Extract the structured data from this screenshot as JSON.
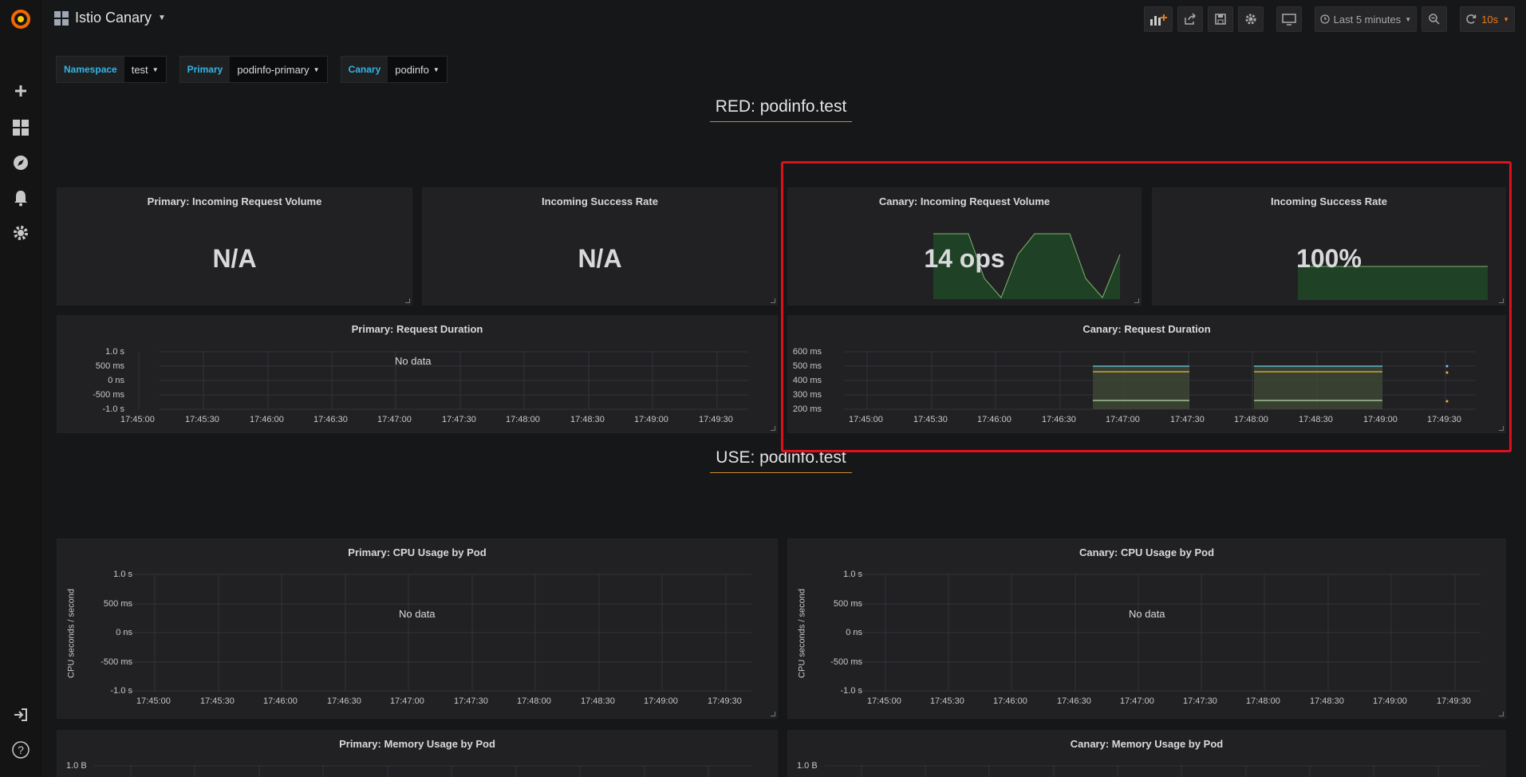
{
  "dashboard": {
    "title": "Istio Canary"
  },
  "toolbar": {
    "time_range": "Last 5 minutes",
    "refresh_interval": "10s",
    "accent_color": "#eb7b18"
  },
  "variables": [
    {
      "label": "Namespace",
      "value": "test"
    },
    {
      "label": "Primary",
      "value": "podinfo-primary"
    },
    {
      "label": "Canary",
      "value": "podinfo"
    }
  ],
  "rows": {
    "red": "RED: podinfo.test",
    "use": "USE: podinfo.test"
  },
  "panels": {
    "primary_volume": {
      "title": "Primary: Incoming Request Volume",
      "value": "N/A"
    },
    "primary_success": {
      "title": "Incoming Success Rate",
      "value": "N/A"
    },
    "canary_volume": {
      "title": "Canary: Incoming Request Volume",
      "value": "14 ops"
    },
    "canary_success": {
      "title": "Incoming Success Rate",
      "value": "100%"
    },
    "primary_duration": {
      "title": "Primary: Request Duration",
      "no_data": "No data"
    },
    "canary_duration": {
      "title": "Canary: Request Duration"
    },
    "primary_cpu": {
      "title": "Primary: CPU Usage by Pod",
      "no_data": "No data",
      "ylabel": "CPU seconds / second"
    },
    "canary_cpu": {
      "title": "Canary: CPU Usage by Pod",
      "no_data": "No data",
      "ylabel": "CPU seconds / second"
    },
    "primary_mem": {
      "title": "Primary: Memory Usage by Pod",
      "first_tick": "1.0 B"
    },
    "canary_mem": {
      "title": "Canary: Memory Usage by Pod",
      "first_tick": "1.0 B"
    }
  },
  "axes": {
    "x_ticks": [
      "17:45:00",
      "17:45:30",
      "17:46:00",
      "17:46:30",
      "17:47:00",
      "17:47:30",
      "17:48:00",
      "17:48:30",
      "17:49:00",
      "17:49:30"
    ],
    "y_ticks_seconds": [
      "1.0 s",
      "500 ms",
      "0 ns",
      "-500 ms",
      "-1.0 s"
    ],
    "y_ticks_canary_duration": [
      "600 ms",
      "500 ms",
      "400 ms",
      "300 ms",
      "200 ms"
    ]
  },
  "icons": [
    "grafana-logo-icon",
    "plus-icon",
    "dashboards-icon",
    "explore-icon",
    "bell-icon",
    "gear-icon",
    "sign-in-icon",
    "help-icon"
  ]
}
